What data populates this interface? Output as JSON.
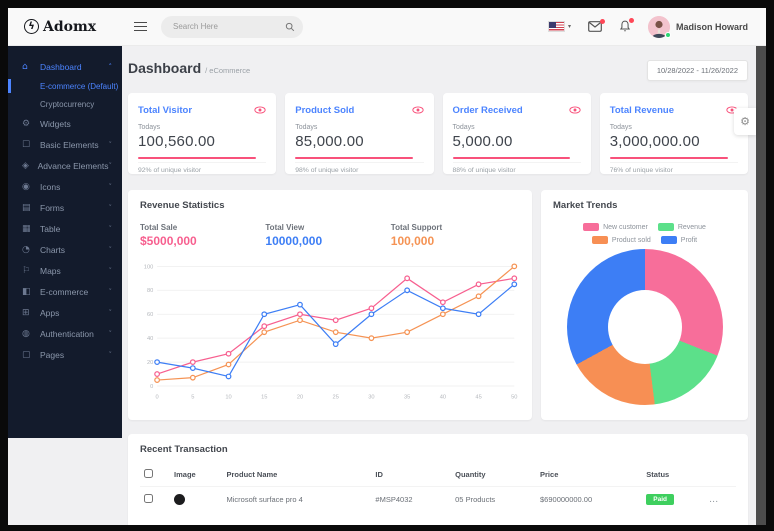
{
  "topbar": {
    "logo_text": "Adomx",
    "search_placeholder": "Search Here",
    "user_name": "Madison Howard"
  },
  "icon_glyphs": {
    "home": "⌂",
    "widgets": "⚙",
    "basic": "☐",
    "advance": "◈",
    "icons": "◉",
    "forms": "▤",
    "table": "▦",
    "charts": "◔",
    "maps": "⚐",
    "ecommerce": "◧",
    "apps": "⊞",
    "auth": "◍",
    "pages": "▢",
    "chevron_down": "˅",
    "chevron_up": "˄",
    "gear": "⚙",
    "dots": "..."
  },
  "sidebar": {
    "items": [
      {
        "label": "Dashboard",
        "icon": "home",
        "active": true,
        "expanded": true,
        "children": [
          {
            "label": "E-commerce (Default)",
            "active": true
          },
          {
            "label": "Cryptocurrency",
            "active": false
          }
        ]
      },
      {
        "label": "Widgets",
        "icon": "widgets",
        "chevron": false
      },
      {
        "label": "Basic Elements",
        "icon": "basic",
        "chevron": true
      },
      {
        "label": "Advance Elements",
        "icon": "advance",
        "chevron": true
      },
      {
        "label": "Icons",
        "icon": "icons",
        "chevron": true
      },
      {
        "label": "Forms",
        "icon": "forms",
        "chevron": true
      },
      {
        "label": "Table",
        "icon": "table",
        "chevron": true
      },
      {
        "label": "Charts",
        "icon": "charts",
        "chevron": true
      },
      {
        "label": "Maps",
        "icon": "maps",
        "chevron": true
      },
      {
        "label": "E-commerce",
        "icon": "ecommerce",
        "chevron": true
      },
      {
        "label": "Apps",
        "icon": "apps",
        "chevron": true
      },
      {
        "label": "Authentication",
        "icon": "auth",
        "chevron": true
      },
      {
        "label": "Pages",
        "icon": "pages",
        "chevron": true
      }
    ]
  },
  "page": {
    "title": "Dashboard",
    "breadcrumb": "/ eCommerce",
    "date_range": "10/28/2022 - 11/26/2022"
  },
  "stat_cards": [
    {
      "title": "Total Visitor",
      "period": "Todays",
      "value": "100,560.00",
      "footnote": "92% of unique visitor"
    },
    {
      "title": "Product Sold",
      "period": "Todays",
      "value": "85,000.00",
      "footnote": "98% of unique visitor"
    },
    {
      "title": "Order Received",
      "period": "Todays",
      "value": "5,000.00",
      "footnote": "88% of unique visitor"
    },
    {
      "title": "Total Revenue",
      "period": "Todays",
      "value": "3,000,000.00",
      "footnote": "76% of unique visitor"
    }
  ],
  "revenue_panel": {
    "title": "Revenue Statistics",
    "stats": [
      {
        "label": "Total Sale",
        "value": "$5000,000",
        "color": "#f75f8f"
      },
      {
        "label": "Total View",
        "value": "10000,000",
        "color": "#3d7ef5"
      },
      {
        "label": "Total Support",
        "value": "100,000",
        "color": "#f59354"
      }
    ]
  },
  "market_panel": {
    "title": "Market Trends"
  },
  "chart_data": [
    {
      "type": "line",
      "title": "Revenue Statistics",
      "x": [
        0,
        5,
        10,
        15,
        20,
        25,
        30,
        35,
        40,
        45,
        50
      ],
      "series": [
        {
          "name": "Total Sale",
          "color": "#f75f8f",
          "values": [
            10,
            20,
            27,
            50,
            60,
            55,
            65,
            90,
            70,
            85,
            90
          ]
        },
        {
          "name": "Total Support",
          "color": "#f59354",
          "values": [
            5,
            7,
            18,
            45,
            55,
            45,
            40,
            45,
            60,
            75,
            100
          ]
        },
        {
          "name": "Total View",
          "color": "#3d7ef5",
          "values": [
            20,
            15,
            8,
            60,
            68,
            35,
            60,
            80,
            65,
            60,
            85
          ]
        }
      ],
      "ylim": [
        0,
        100
      ],
      "yticks": [
        0,
        20,
        40,
        60,
        80,
        100
      ],
      "grid": true,
      "legend_position": "none"
    },
    {
      "type": "pie",
      "donut": true,
      "title": "Market Trends",
      "labels": [
        "New customer",
        "Revenue",
        "Product sold",
        "Profit"
      ],
      "values": [
        31,
        17,
        19,
        33
      ],
      "colors": [
        "#f76e9a",
        "#5ce08a",
        "#f78f54",
        "#3d7ef5"
      ],
      "legend_position": "top"
    }
  ],
  "transactions": {
    "title": "Recent Transaction",
    "columns": [
      "Image",
      "Product Name",
      "ID",
      "Quantity",
      "Price",
      "Status"
    ],
    "rows": [
      {
        "product_name": "Microsoft surface pro 4",
        "id": "#MSP4032",
        "quantity": "05  Products",
        "price": "$690000000.00",
        "status": "Paid",
        "status_color": "#3ecf5e"
      }
    ]
  }
}
